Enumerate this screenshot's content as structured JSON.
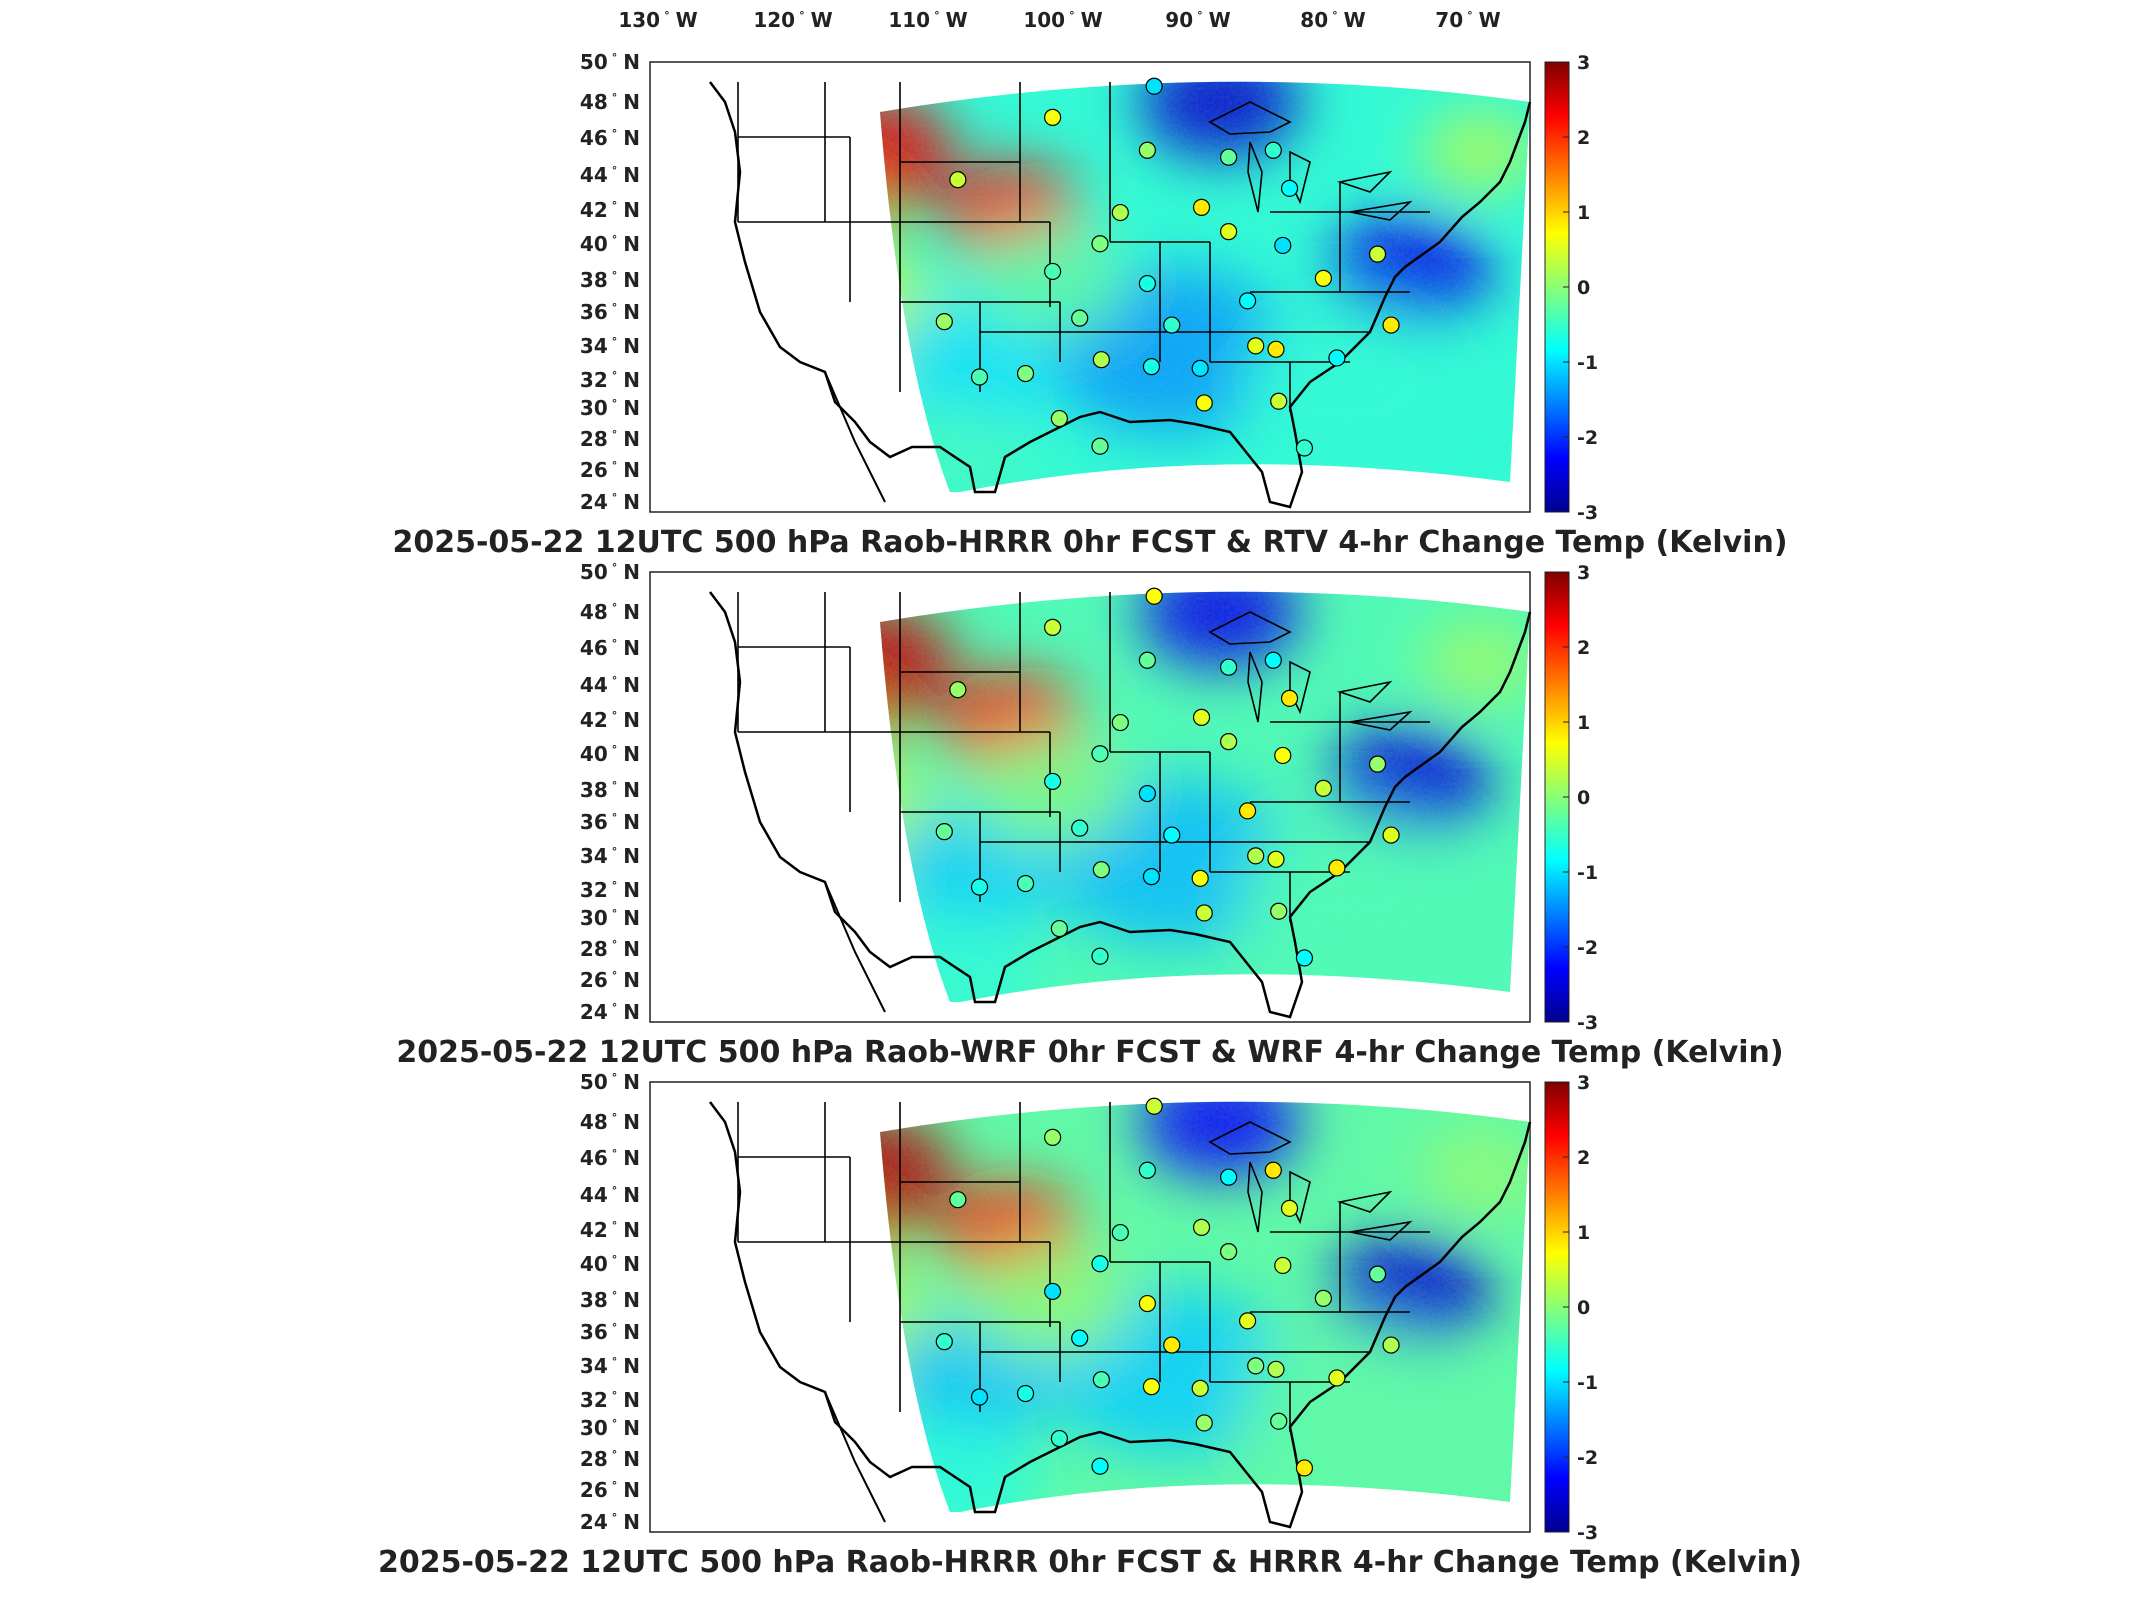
{
  "lon_labels": [
    {
      "deg": "130",
      "hem": "W"
    },
    {
      "deg": "120",
      "hem": "W"
    },
    {
      "deg": "110",
      "hem": "W"
    },
    {
      "deg": "100",
      "hem": "W"
    },
    {
      "deg": "90",
      "hem": "W"
    },
    {
      "deg": "80",
      "hem": "W"
    },
    {
      "deg": "70",
      "hem": "W"
    }
  ],
  "lat_labels": [
    {
      "deg": "50",
      "hem": "N"
    },
    {
      "deg": "48",
      "hem": "N"
    },
    {
      "deg": "46",
      "hem": "N"
    },
    {
      "deg": "44",
      "hem": "N"
    },
    {
      "deg": "42",
      "hem": "N"
    },
    {
      "deg": "40",
      "hem": "N"
    },
    {
      "deg": "38",
      "hem": "N"
    },
    {
      "deg": "36",
      "hem": "N"
    },
    {
      "deg": "34",
      "hem": "N"
    },
    {
      "deg": "32",
      "hem": "N"
    },
    {
      "deg": "30",
      "hem": "N"
    },
    {
      "deg": "28",
      "hem": "N"
    },
    {
      "deg": "26",
      "hem": "N"
    },
    {
      "deg": "24",
      "hem": "N"
    }
  ],
  "degree_symbol": "°",
  "colorbar": {
    "ticks": [
      "3",
      "2",
      "1",
      "0",
      "-1",
      "-2",
      "-3"
    ],
    "min": -3,
    "max": 3,
    "colormap": "jet",
    "colors": [
      "#00008f",
      "#0000ff",
      "#00ffff",
      "#ffff00",
      "#ff0000",
      "#800000"
    ]
  },
  "panels": [
    {
      "title": "2025-05-22 12UTC 500 hPa Raob-HRRR 0hr FCST & RTV 4-hr Change Temp (Kelvin)"
    },
    {
      "title": "2025-05-22 12UTC 500 hPa Raob-WRF 0hr FCST & WRF 4-hr Change Temp (Kelvin)"
    },
    {
      "title": "2025-05-22 12UTC 500 hPa Raob-HRRR 0hr FCST & HRRR 4-hr Change Temp (Kelvin)"
    }
  ],
  "raob_stations": [
    {
      "lon": -93.5,
      "lat": 48.6
    },
    {
      "lon": -101.0,
      "lat": 46.8
    },
    {
      "lon": -108.0,
      "lat": 43.2
    },
    {
      "lon": -94.0,
      "lat": 44.9
    },
    {
      "lon": -88.0,
      "lat": 44.5
    },
    {
      "lon": -84.7,
      "lat": 44.9
    },
    {
      "lon": -83.5,
      "lat": 42.7
    },
    {
      "lon": -90.0,
      "lat": 41.6
    },
    {
      "lon": -88.0,
      "lat": 40.2
    },
    {
      "lon": -96.0,
      "lat": 41.3
    },
    {
      "lon": -97.5,
      "lat": 39.5
    },
    {
      "lon": -101.0,
      "lat": 37.9
    },
    {
      "lon": -94.0,
      "lat": 37.2
    },
    {
      "lon": -84.0,
      "lat": 39.4
    },
    {
      "lon": -81.0,
      "lat": 37.5
    },
    {
      "lon": -77.0,
      "lat": 38.9
    },
    {
      "lon": -109.0,
      "lat": 35.0
    },
    {
      "lon": -99.0,
      "lat": 35.2
    },
    {
      "lon": -92.2,
      "lat": 34.8
    },
    {
      "lon": -86.6,
      "lat": 36.2
    },
    {
      "lon": -84.5,
      "lat": 33.4
    },
    {
      "lon": -86.0,
      "lat": 33.6
    },
    {
      "lon": -97.4,
      "lat": 32.8
    },
    {
      "lon": -103.0,
      "lat": 32.0
    },
    {
      "lon": -106.4,
      "lat": 31.8
    },
    {
      "lon": -93.7,
      "lat": 32.4
    },
    {
      "lon": -90.1,
      "lat": 32.3
    },
    {
      "lon": -89.8,
      "lat": 30.3
    },
    {
      "lon": -84.3,
      "lat": 30.4
    },
    {
      "lon": -100.5,
      "lat": 29.4
    },
    {
      "lon": -97.5,
      "lat": 27.8
    },
    {
      "lon": -82.4,
      "lat": 27.7
    },
    {
      "lon": -80.0,
      "lat": 32.9
    },
    {
      "lon": -76.0,
      "lat": 34.8
    }
  ]
}
